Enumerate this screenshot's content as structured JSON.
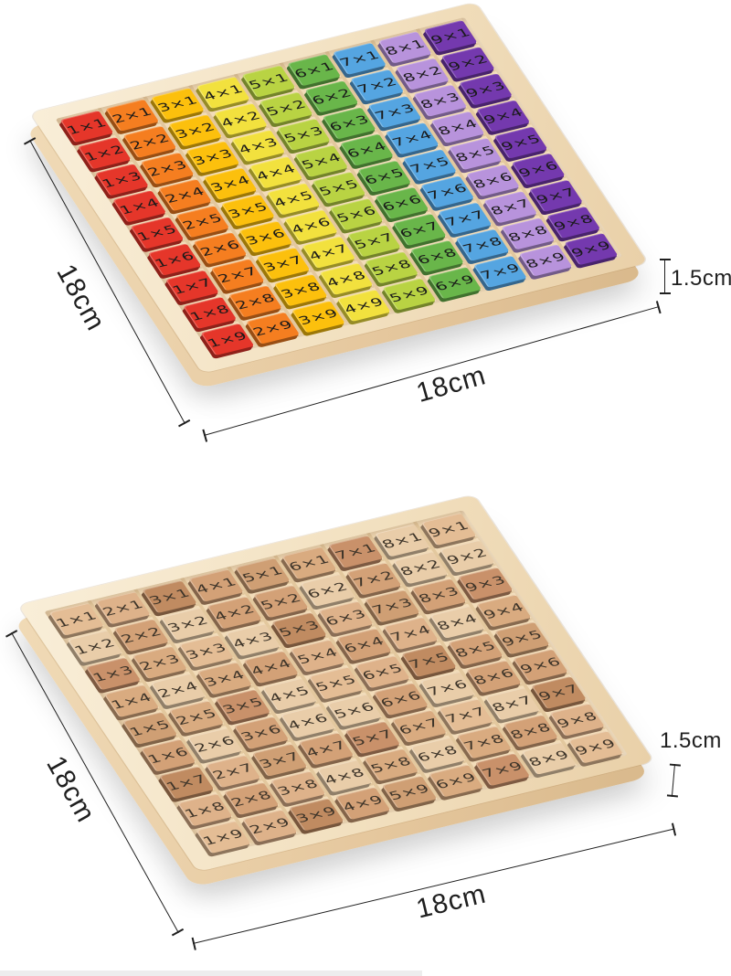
{
  "colors": {
    "tray": "#f2dcb9",
    "groove": "#e3c89e",
    "dimension": "#1f1f1f",
    "strip": "#ededed"
  },
  "wood_palette": [
    "#e4bd95",
    "#d3a177",
    "#c9916a",
    "#deb28a",
    "#cf9f74",
    "#e9cda9",
    "#c08b61",
    "#d9ab80"
  ],
  "grid": {
    "columns": [
      {
        "factor": "1",
        "color": "#e5362a",
        "labels": [
          "1×1",
          "1×2",
          "1×3",
          "1×4",
          "1×5",
          "1×6",
          "1×7",
          "1×8",
          "1×9"
        ]
      },
      {
        "factor": "2",
        "color": "#f57e20",
        "labels": [
          "2×1",
          "2×2",
          "2×3",
          "2×4",
          "2×5",
          "2×6",
          "2×7",
          "2×8",
          "2×9"
        ]
      },
      {
        "factor": "3",
        "color": "#fcc00d",
        "labels": [
          "3×1",
          "3×2",
          "3×3",
          "3×4",
          "3×5",
          "3×6",
          "3×7",
          "3×8",
          "3×9"
        ]
      },
      {
        "factor": "4",
        "color": "#f2e13e",
        "labels": [
          "4×1",
          "4×2",
          "4×3",
          "4×4",
          "4×5",
          "4×6",
          "4×7",
          "4×8",
          "4×9"
        ]
      },
      {
        "factor": "5",
        "color": "#b9d343",
        "labels": [
          "5×1",
          "5×2",
          "5×3",
          "5×4",
          "5×5",
          "5×6",
          "5×7",
          "5×8",
          "5×9"
        ]
      },
      {
        "factor": "6",
        "color": "#69b64a",
        "labels": [
          "6×1",
          "6×2",
          "6×3",
          "6×4",
          "6×5",
          "6×6",
          "6×7",
          "6×8",
          "6×9"
        ]
      },
      {
        "factor": "7",
        "color": "#55a5e1",
        "labels": [
          "7×1",
          "7×2",
          "7×3",
          "7×4",
          "7×5",
          "7×6",
          "7×7",
          "7×8",
          "7×9"
        ]
      },
      {
        "factor": "8",
        "color": "#b893dc",
        "labels": [
          "8×1",
          "8×2",
          "8×3",
          "8×4",
          "8×5",
          "8×6",
          "8×7",
          "8×8",
          "8×9"
        ]
      },
      {
        "factor": "9",
        "color": "#7439ae",
        "labels": [
          "9×1",
          "9×2",
          "9×3",
          "9×4",
          "9×5",
          "9×6",
          "9×7",
          "9×8",
          "9×9"
        ]
      }
    ]
  },
  "boards": [
    {
      "id": "colorful",
      "annotations": {
        "left": "18cm",
        "bottom": "18cm",
        "thickness": "1.5cm"
      }
    },
    {
      "id": "natural-wood",
      "annotations": {
        "left": "18cm",
        "bottom": "18cm",
        "thickness": "1.5cm"
      }
    }
  ]
}
